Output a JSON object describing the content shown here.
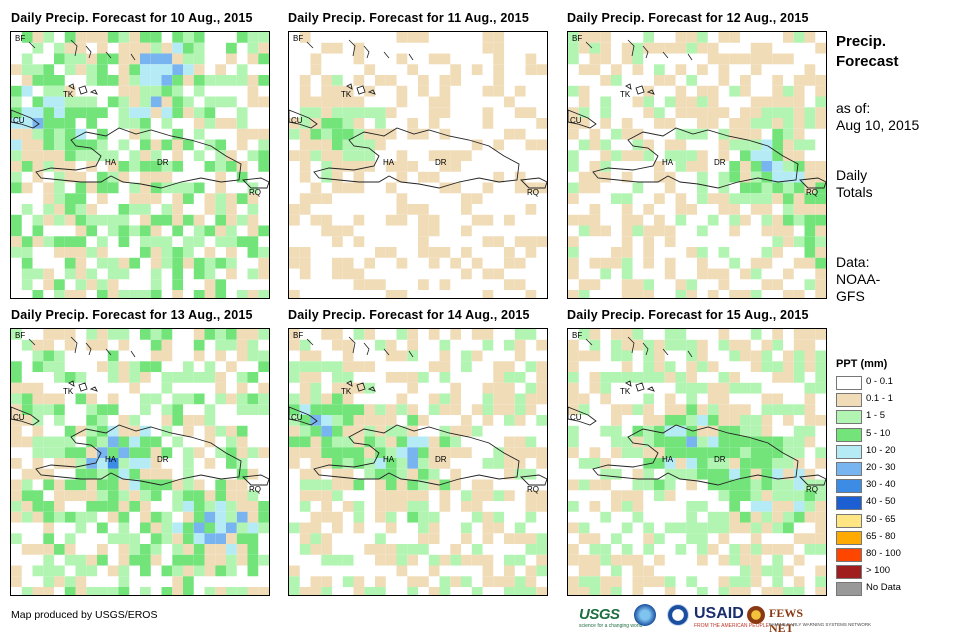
{
  "panels": [
    {
      "title": "Daily Precip. Forecast for 10 Aug., 2015"
    },
    {
      "title": "Daily Precip. Forecast for 11 Aug., 2015"
    },
    {
      "title": "Daily Precip. Forecast for 12 Aug., 2015"
    },
    {
      "title": "Daily Precip. Forecast for 13 Aug., 2015"
    },
    {
      "title": "Daily Precip. Forecast for 14 Aug., 2015"
    },
    {
      "title": "Daily Precip. Forecast for 15 Aug., 2015"
    }
  ],
  "map_labels": {
    "bf": "BF",
    "tk": "TK",
    "cu": "CU",
    "ha": "HA",
    "dr": "DR",
    "rq": "RQ"
  },
  "side": {
    "heading_line1": "Precip.",
    "heading_line2": "Forecast",
    "asof_line1": "as of:",
    "asof_line2": "Aug 10, 2015",
    "totals_line1": "Daily",
    "totals_line2": "Totals",
    "data_line1": "Data:",
    "data_line2": "NOAA-",
    "data_line3": "GFS"
  },
  "legend": {
    "title": "PPT (mm)",
    "items": [
      {
        "label": "0 - 0.1",
        "color": "#ffffff"
      },
      {
        "label": "0.1 - 1",
        "color": "#f0dcb7"
      },
      {
        "label": "1 - 5",
        "color": "#b2f5b2"
      },
      {
        "label": "5 - 10",
        "color": "#72e47a"
      },
      {
        "label": "10 - 20",
        "color": "#b4ebf5"
      },
      {
        "label": "20 - 30",
        "color": "#78b4f0"
      },
      {
        "label": "30 - 40",
        "color": "#3c8ce6"
      },
      {
        "label": "40 - 50",
        "color": "#1c5fd2"
      },
      {
        "label": "50 - 65",
        "color": "#ffe682"
      },
      {
        "label": "65 - 80",
        "color": "#ffaa00"
      },
      {
        "label": "80 - 100",
        "color": "#ff4600"
      },
      {
        "label": "> 100",
        "color": "#a01e1e"
      },
      {
        "label": "No Data",
        "color": "#999999"
      }
    ]
  },
  "footer": {
    "credit": "Map produced by USGS/EROS"
  },
  "logos": {
    "usgs": "USGS",
    "usgs_tag": "science for a changing world",
    "usaid": "USAID",
    "usaid_tag": "FROM THE AMERICAN PEOPLE",
    "fews": "FEWS NET",
    "fews_tag": "FAMINE EARLY WARNING SYSTEMS NETWORK"
  }
}
